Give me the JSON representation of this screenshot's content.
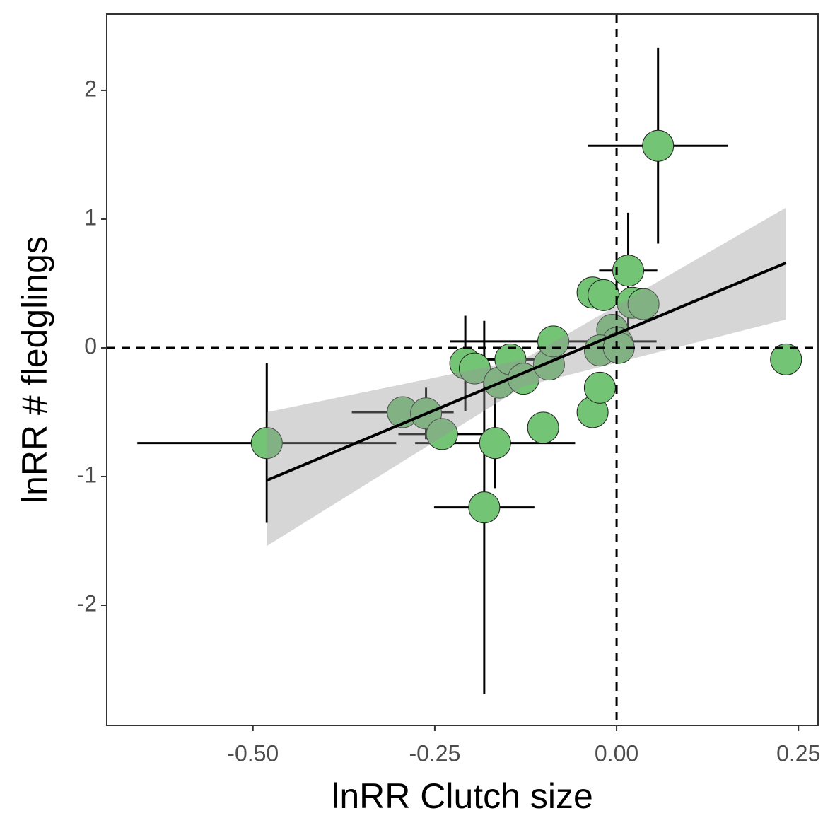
{
  "chart_data": {
    "type": "scatter",
    "x_label": "lnRR Clutch size",
    "y_label": "lnRR # fledglings",
    "xlim": [
      -0.701,
      0.277
    ],
    "ylim": [
      -2.934,
      2.593
    ],
    "xticks": [
      {
        "value": -0.5,
        "label": "-0.50"
      },
      {
        "value": -0.25,
        "label": "-0.25"
      },
      {
        "value": 0,
        "label": "0.00"
      },
      {
        "value": 0.25,
        "label": "0.25"
      }
    ],
    "yticks": [
      -2,
      -1,
      0,
      1,
      2
    ],
    "grid": false,
    "reference_lines": {
      "x": 0,
      "y": 0
    },
    "series": [
      {
        "color": "#74c476",
        "x": [
          0.057,
          0.016,
          -0.481,
          -0.182,
          0.233,
          -0.167,
          -0.101,
          -0.033,
          -0.023,
          -0.294,
          -0.262,
          -0.24,
          -0.208,
          -0.195,
          -0.161,
          -0.146,
          -0.128,
          -0.093,
          -0.087,
          -0.033,
          -0.018,
          0.022,
          0.037,
          -0.006,
          0.001,
          -0.023,
          0.003
        ],
        "y": [
          1.57,
          0.6,
          -0.74,
          -1.24,
          -0.09,
          -0.74,
          -0.62,
          -0.5,
          -0.31,
          -0.5,
          -0.51,
          -0.67,
          -0.12,
          -0.16,
          -0.27,
          -0.09,
          -0.24,
          -0.13,
          0.05,
          0.43,
          0.41,
          0.35,
          0.34,
          0.14,
          0.04,
          -0.02,
          0.0
        ],
        "xerr": [
          0.096,
          0.04,
          0.178,
          0.069,
          0,
          0.11,
          0,
          0,
          0,
          0.07,
          0,
          0.06,
          0,
          0,
          0,
          0.05,
          0,
          0,
          0.142,
          0,
          0,
          0,
          0,
          0,
          0,
          0,
          0
        ],
        "yerr": [
          0.76,
          0.45,
          0.62,
          1.45,
          0,
          0.35,
          0,
          0,
          0.1,
          0,
          0.2,
          0,
          0.37,
          0,
          0,
          0,
          0,
          0,
          0,
          0,
          0,
          0,
          0,
          0,
          0,
          0,
          0
        ]
      }
    ],
    "fit": {
      "color": "#000000",
      "band_color": "#999999",
      "x": [
        -0.481,
        -0.128,
        0.233
      ],
      "y": [
        -1.03,
        -0.195,
        0.66
      ],
      "lower": [
        -1.54,
        -0.3,
        0.22
      ],
      "upper": [
        -0.5,
        -0.09,
        1.09
      ]
    }
  }
}
